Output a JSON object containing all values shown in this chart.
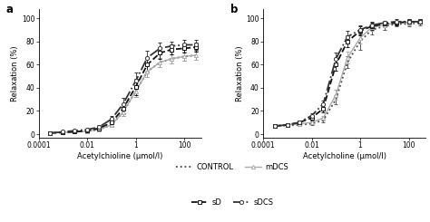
{
  "panel_a": {
    "label": "a",
    "xlabel": "Acetylchioline (μmol/l)",
    "ylabel": "Relaxation (%)",
    "xlim": [
      0.0001,
      500
    ],
    "ylim": [
      -3,
      108
    ],
    "yticks": [
      0,
      20,
      40,
      60,
      80,
      100
    ],
    "curves": {
      "CONTROL": {
        "style": "dotted",
        "color": "#444444",
        "marker": "None",
        "lw": 1.3,
        "x": [
          0.0003,
          0.001,
          0.003,
          0.01,
          0.03,
          0.1,
          0.3,
          1,
          3,
          10,
          30,
          100,
          300
        ],
        "y": [
          1,
          1.5,
          2,
          2.5,
          4,
          8,
          19,
          37,
          54,
          62,
          65,
          67,
          68
        ],
        "yerr": [
          0.5,
          0.5,
          0.5,
          0.5,
          1,
          2,
          3,
          5,
          5,
          4,
          4,
          4,
          4
        ]
      },
      "mDCS": {
        "style": "solid",
        "color": "#aaaaaa",
        "marker": "^",
        "lw": 1.0,
        "x": [
          0.0003,
          0.001,
          0.003,
          0.01,
          0.03,
          0.1,
          0.3,
          1,
          3,
          10,
          30,
          100,
          300
        ],
        "y": [
          1,
          1.5,
          2,
          2.5,
          4,
          8,
          19,
          37,
          54,
          62,
          65,
          67,
          68
        ],
        "yerr": [
          0.5,
          0.5,
          0.5,
          0.5,
          1,
          2,
          3,
          5,
          5,
          4,
          4,
          4,
          4
        ]
      },
      "sD": {
        "style": "dashed",
        "color": "#111111",
        "marker": "s",
        "lw": 1.3,
        "x": [
          0.0003,
          0.001,
          0.003,
          0.01,
          0.03,
          0.1,
          0.3,
          1,
          3,
          10,
          30,
          100,
          300
        ],
        "y": [
          1,
          1.5,
          2,
          3,
          5,
          10,
          22,
          41,
          60,
          70,
          73,
          74,
          75
        ],
        "yerr": [
          0.5,
          0.5,
          0.5,
          1,
          1.5,
          3,
          4,
          7,
          6,
          5,
          4,
          4,
          4
        ]
      },
      "sDCS": {
        "style": "dashdot",
        "color": "#333333",
        "marker": "o",
        "lw": 1.3,
        "x": [
          0.0003,
          0.001,
          0.003,
          0.01,
          0.03,
          0.1,
          0.3,
          1,
          3,
          10,
          30,
          100,
          300
        ],
        "y": [
          1,
          2,
          3,
          4,
          6,
          13,
          26,
          46,
          66,
          74,
          76,
          77,
          77
        ],
        "yerr": [
          0.5,
          0.5,
          0.5,
          1,
          1.5,
          3,
          5,
          7,
          6,
          5,
          4,
          4,
          4
        ]
      }
    }
  },
  "panel_b": {
    "label": "b",
    "xlabel": "Acetylcholine (μmol/l)",
    "ylabel": "Relaxation (%)",
    "xlim": [
      0.0001,
      500
    ],
    "ylim": [
      -3,
      108
    ],
    "yticks": [
      0,
      20,
      40,
      60,
      80,
      100
    ],
    "curves": {
      "CONTROL": {
        "style": "dotted",
        "color": "#444444",
        "marker": "None",
        "lw": 1.3,
        "x": [
          0.0003,
          0.001,
          0.003,
          0.01,
          0.03,
          0.1,
          0.3,
          1,
          3,
          10,
          30,
          100,
          300
        ],
        "y": [
          7,
          7.5,
          8,
          9,
          12,
          30,
          62,
          80,
          90,
          93,
          95,
          95,
          96
        ],
        "yerr": [
          1,
          1,
          1,
          1,
          2,
          4,
          5,
          7,
          4,
          3,
          2,
          2,
          2
        ]
      },
      "mDCS": {
        "style": "solid",
        "color": "#aaaaaa",
        "marker": "^",
        "lw": 1.0,
        "x": [
          0.0003,
          0.001,
          0.003,
          0.01,
          0.03,
          0.1,
          0.3,
          1,
          3,
          10,
          30,
          100,
          300
        ],
        "y": [
          7,
          8,
          9,
          10,
          14,
          34,
          66,
          83,
          92,
          94,
          96,
          96,
          97
        ],
        "yerr": [
          1,
          1,
          1,
          1,
          2,
          4,
          5,
          5,
          3,
          2,
          2,
          2,
          2
        ]
      },
      "sD": {
        "style": "dashed",
        "color": "#111111",
        "marker": "s",
        "lw": 1.3,
        "x": [
          0.0003,
          0.001,
          0.003,
          0.01,
          0.03,
          0.1,
          0.3,
          1,
          3,
          10,
          30,
          100,
          300
        ],
        "y": [
          7,
          8,
          10,
          14,
          22,
          60,
          80,
          89,
          93,
          95,
          96,
          97,
          97
        ],
        "yerr": [
          1,
          1,
          1,
          2,
          3,
          5,
          5,
          4,
          3,
          2,
          2,
          2,
          2
        ]
      },
      "sDCS": {
        "style": "dashdot",
        "color": "#333333",
        "marker": "o",
        "lw": 1.3,
        "x": [
          0.0003,
          0.001,
          0.003,
          0.01,
          0.03,
          0.1,
          0.3,
          1,
          3,
          10,
          30,
          100,
          300
        ],
        "y": [
          7,
          8,
          10,
          16,
          26,
          65,
          84,
          90,
          94,
          96,
          97,
          97,
          97
        ],
        "yerr": [
          1,
          1,
          1,
          2,
          3,
          5,
          5,
          4,
          3,
          2,
          2,
          2,
          2
        ]
      }
    }
  },
  "legend_entries": [
    {
      "label": "CONTROL",
      "style": "dotted",
      "color": "#444444",
      "marker": "None",
      "lw": 1.3
    },
    {
      "label": "mDCS",
      "style": "solid",
      "color": "#aaaaaa",
      "marker": "^",
      "lw": 1.0
    },
    {
      "label": "sD",
      "style": "dashed",
      "color": "#111111",
      "marker": "s",
      "lw": 1.3
    },
    {
      "label": "sDCS",
      "style": "dashdot",
      "color": "#333333",
      "marker": "o",
      "lw": 1.3
    }
  ],
  "background_color": "#ffffff",
  "fontsize": 6.5
}
